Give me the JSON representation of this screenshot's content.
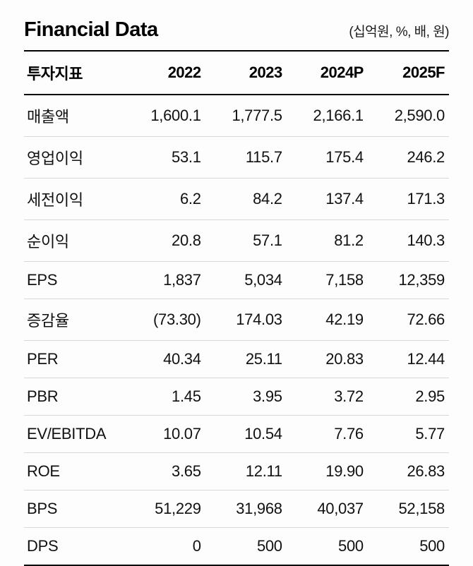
{
  "header": {
    "title": "Financial Data",
    "unit_note": "(십억원, %, 배, 원)"
  },
  "table": {
    "columns": [
      "투자지표",
      "2022",
      "2023",
      "2024P",
      "2025F"
    ],
    "rows": [
      {
        "label": "매출액",
        "values": [
          "1,600.1",
          "1,777.5",
          "2,166.1",
          "2,590.0"
        ]
      },
      {
        "label": "영업이익",
        "values": [
          "53.1",
          "115.7",
          "175.4",
          "246.2"
        ]
      },
      {
        "label": "세전이익",
        "values": [
          "6.2",
          "84.2",
          "137.4",
          "171.3"
        ]
      },
      {
        "label": "순이익",
        "values": [
          "20.8",
          "57.1",
          "81.2",
          "140.3"
        ]
      },
      {
        "label": "EPS",
        "values": [
          "1,837",
          "5,034",
          "7,158",
          "12,359"
        ]
      },
      {
        "label": "증감율",
        "values": [
          "(73.30)",
          "174.03",
          "42.19",
          "72.66"
        ]
      },
      {
        "label": "PER",
        "values": [
          "40.34",
          "25.11",
          "20.83",
          "12.44"
        ]
      },
      {
        "label": "PBR",
        "values": [
          "1.45",
          "3.95",
          "3.72",
          "2.95"
        ]
      },
      {
        "label": "EV/EBITDA",
        "values": [
          "10.07",
          "10.54",
          "7.76",
          "5.77"
        ]
      },
      {
        "label": "ROE",
        "values": [
          "3.65",
          "12.11",
          "19.90",
          "26.83"
        ]
      },
      {
        "label": "BPS",
        "values": [
          "51,229",
          "31,968",
          "40,037",
          "52,158"
        ]
      },
      {
        "label": "DPS",
        "values": [
          "0",
          "500",
          "500",
          "500"
        ]
      }
    ]
  }
}
